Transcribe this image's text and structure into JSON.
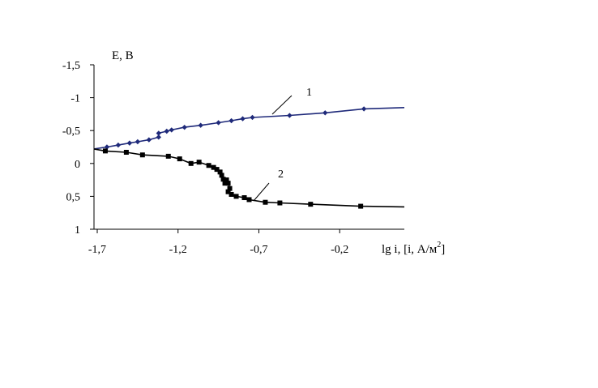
{
  "chart_data": {
    "type": "line",
    "title": "",
    "ylabel": "E, B",
    "xlabel": "lg i, [i, А/м",
    "xlabel_sup": "2",
    "xlabel_close": "]",
    "x_ticks": [
      {
        "value": -1.7,
        "label": "-1,7"
      },
      {
        "value": -1.2,
        "label": "-1,2"
      },
      {
        "value": -0.7,
        "label": "-0,7"
      },
      {
        "value": -0.2,
        "label": "-0,2"
      }
    ],
    "y_ticks": [
      {
        "value": -1.5,
        "label": "-1,5"
      },
      {
        "value": -1.0,
        "label": "-1"
      },
      {
        "value": -0.5,
        "label": "-0,5"
      },
      {
        "value": 0.0,
        "label": "0"
      },
      {
        "value": 0.5,
        "label": "0,5"
      },
      {
        "value": 1.0,
        "label": "1"
      }
    ],
    "xlim": [
      -1.72,
      0.2
    ],
    "ylim": [
      -1.5,
      1.0
    ],
    "y_inverted": true,
    "grid": false,
    "series": [
      {
        "name": "1",
        "color": "#1f2a7a",
        "marker": "diamond",
        "x": [
          -1.72,
          -1.64,
          -1.57,
          -1.5,
          -1.45,
          -1.38,
          -1.32,
          -1.32,
          -1.27,
          -1.24,
          -1.16,
          -1.06,
          -0.95,
          -0.87,
          -0.8,
          -0.74,
          -0.51,
          -0.29,
          -0.05,
          0.2
        ],
        "y": [
          -0.22,
          -0.25,
          -0.28,
          -0.31,
          -0.33,
          -0.36,
          -0.4,
          -0.46,
          -0.49,
          -0.51,
          -0.55,
          -0.58,
          -0.62,
          -0.65,
          -0.68,
          -0.7,
          -0.73,
          -0.77,
          -0.83,
          -0.85
        ]
      },
      {
        "name": "2",
        "color": "#000000",
        "marker": "square",
        "x": [
          -1.72,
          -1.65,
          -1.52,
          -1.42,
          -1.26,
          -1.19,
          -1.12,
          -1.07,
          -1.01,
          -0.98,
          -0.96,
          -0.94,
          -0.93,
          -0.92,
          -0.91,
          -0.9,
          -0.89,
          -0.88,
          -0.89,
          -0.87,
          -0.84,
          -0.79,
          -0.76,
          -0.66,
          -0.57,
          -0.38,
          -0.07,
          0.2
        ],
        "y": [
          -0.22,
          -0.19,
          -0.17,
          -0.13,
          -0.11,
          -0.07,
          0.0,
          -0.02,
          0.03,
          0.06,
          0.09,
          0.13,
          0.18,
          0.24,
          0.3,
          0.25,
          0.3,
          0.38,
          0.43,
          0.47,
          0.5,
          0.52,
          0.55,
          0.59,
          0.6,
          0.62,
          0.65,
          0.66
        ]
      }
    ],
    "annotations": [
      {
        "text": "1",
        "series": 0
      },
      {
        "text": "2",
        "series": 1
      }
    ]
  }
}
